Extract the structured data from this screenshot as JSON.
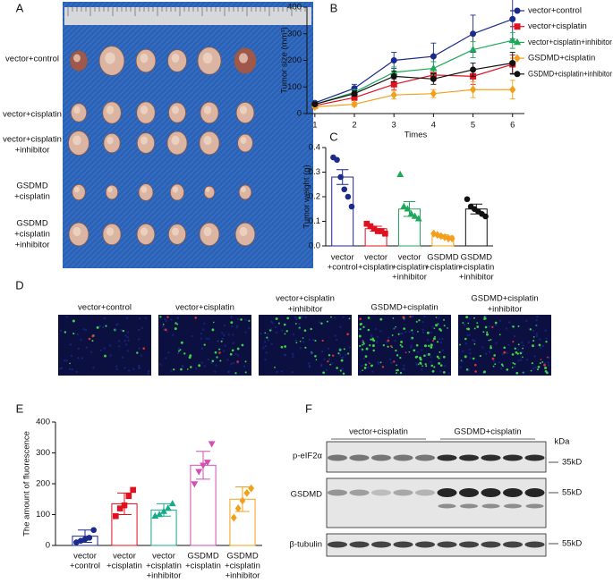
{
  "panel_labels": [
    "A",
    "B",
    "C",
    "D",
    "E",
    "F"
  ],
  "panel_a": {
    "rows": [
      [
        "vector+control"
      ],
      [
        "vector+cisplatin"
      ],
      [
        "vector+cisplatin",
        "+inhibitor"
      ],
      [
        "GSDMD",
        "+cisplatin"
      ],
      [
        "GSDMD",
        "+cisplatin",
        "+inhibitor"
      ]
    ]
  },
  "panel_d": {
    "images": [
      [
        "vector+control"
      ],
      [
        "vector+cisplatin"
      ],
      [
        "vector+cisplatin",
        "+inhibitor"
      ],
      [
        "GSDMD+cisplatin"
      ],
      [
        "GSDMD+cisplatin",
        "+inhibitor"
      ]
    ]
  },
  "panel_f": {
    "groups": [
      "vector+cisplatin",
      "GSDMD+cisplatin"
    ],
    "unit": "kDa",
    "rows": [
      {
        "label": "p-eIF2α",
        "marker": "35kD"
      },
      {
        "label": "GSDMD",
        "marker": "55kD"
      },
      {
        "label": "β-tubulin",
        "marker": "55kD"
      }
    ]
  },
  "chart_data": [
    {
      "type": "line",
      "xlabel": "Times",
      "ylabel": "Tumor size (mm³)",
      "x": [
        1,
        2,
        3,
        4,
        5,
        6
      ],
      "xlim": [
        0.8,
        6.3
      ],
      "xticks": [
        1,
        2,
        3,
        4,
        5,
        6
      ],
      "ylim": [
        0,
        400
      ],
      "yticks": [
        0,
        100,
        200,
        300,
        400
      ],
      "series": [
        {
          "name": "vector+control",
          "color": "#1c2a8c",
          "marker": "circle",
          "values": [
            40,
            95,
            200,
            215,
            300,
            355
          ],
          "errors": [
            5,
            15,
            30,
            50,
            70,
            75
          ]
        },
        {
          "name": "vector+cisplatin",
          "color": "#e0101e",
          "marker": "square",
          "values": [
            30,
            60,
            110,
            145,
            140,
            185
          ],
          "errors": [
            5,
            10,
            20,
            20,
            30,
            35
          ]
        },
        {
          "name": "vector+cisplatin+inhibitor",
          "color": "#1fa85a",
          "marker": "triangle",
          "values": [
            35,
            80,
            155,
            170,
            240,
            275
          ],
          "errors": [
            5,
            10,
            20,
            25,
            30,
            30
          ]
        },
        {
          "name": "GSDMD+cisplatin",
          "color": "#f2a01c",
          "marker": "diamond",
          "values": [
            25,
            35,
            70,
            75,
            90,
            90
          ],
          "errors": [
            3,
            8,
            15,
            15,
            30,
            35
          ]
        },
        {
          "name": "GSDMD+cisplatin+inhibitor",
          "color": "#111111",
          "marker": "circle",
          "values": [
            35,
            75,
            140,
            130,
            165,
            190
          ],
          "errors": [
            5,
            10,
            20,
            20,
            25,
            40
          ]
        }
      ]
    },
    {
      "type": "bar",
      "ylabel": "Tumor weight (g)",
      "categories": [
        [
          "vector",
          "+control"
        ],
        [
          "vector",
          "+cisplatin"
        ],
        [
          "vector",
          "+cisplatin",
          "+inhibitor"
        ],
        [
          "GSDMD",
          "+cisplatin"
        ],
        [
          "GSDMD",
          "+cisplatin",
          "+inhibitor"
        ]
      ],
      "values": [
        0.28,
        0.07,
        0.15,
        0.04,
        0.15
      ],
      "errors": [
        0.03,
        0.01,
        0.03,
        0.005,
        0.02
      ],
      "colors": [
        "#1c2a8c",
        "#e0101e",
        "#1fa85a",
        "#f2a01c",
        "#111111"
      ],
      "markers": [
        "circle",
        "square",
        "triangle",
        "diamond",
        "circle"
      ],
      "points": [
        [
          0.36,
          0.35,
          0.28,
          0.23,
          0.2,
          0.16
        ],
        [
          0.09,
          0.08,
          0.07,
          0.06,
          0.06,
          0.05
        ],
        [
          0.29,
          0.16,
          0.15,
          0.13,
          0.12,
          0.11
        ],
        [
          0.05,
          0.045,
          0.04,
          0.035,
          0.03,
          0.03
        ],
        [
          0.19,
          0.16,
          0.15,
          0.14,
          0.13,
          0.12
        ]
      ],
      "ylim": [
        0,
        0.4
      ],
      "yticks": [
        {
          "value": 0,
          "label": "0.0"
        },
        0.1,
        0.2,
        0.3,
        0.4
      ]
    },
    {
      "type": "bar",
      "ylabel": "The amount of fluorescence",
      "categories": [
        [
          "vector",
          "+control"
        ],
        [
          "vector",
          "+cisplatin"
        ],
        [
          "vector",
          "+cisplatin",
          "+inhibitor"
        ],
        [
          "GSDMD",
          "+cisplatin"
        ],
        [
          "GSDMD",
          "+cisplatin",
          "+inhibitor"
        ]
      ],
      "values": [
        30,
        135,
        115,
        260,
        150
      ],
      "errors": [
        20,
        35,
        20,
        45,
        40
      ],
      "colors": [
        "#1c2a8c",
        "#e0101e",
        "#18a88a",
        "#d24fb4",
        "#f2a01c"
      ],
      "markers": [
        "circle",
        "square",
        "triangle",
        "triangle-down",
        "diamond"
      ],
      "points": [
        [
          10,
          15,
          20,
          25,
          50
        ],
        [
          95,
          120,
          130,
          160,
          180
        ],
        [
          95,
          100,
          110,
          120,
          135
        ],
        [
          200,
          240,
          260,
          270,
          330
        ],
        [
          90,
          120,
          145,
          170,
          185
        ]
      ],
      "ylim": [
        0,
        400
      ],
      "yticks": [
        0,
        100,
        200,
        300,
        400
      ]
    }
  ]
}
